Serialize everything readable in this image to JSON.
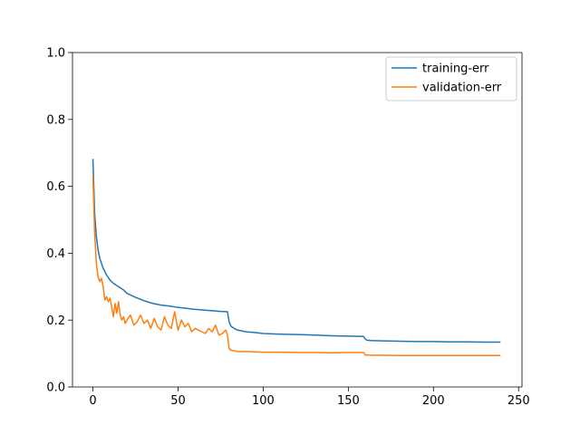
{
  "colors": {
    "training": "#1f77b4",
    "validation": "#ff7f0e",
    "axis": "#000000",
    "legend_border": "#cccccc"
  },
  "chart_data": {
    "type": "line",
    "title": "",
    "xlabel": "",
    "ylabel": "",
    "xlim": [
      -12,
      252
    ],
    "ylim": [
      0.0,
      1.0
    ],
    "xticks": [
      0,
      50,
      100,
      150,
      200,
      250
    ],
    "xtick_labels": [
      "0",
      "50",
      "100",
      "150",
      "200",
      "250"
    ],
    "yticks": [
      0.0,
      0.2,
      0.4,
      0.6,
      0.8,
      1.0
    ],
    "ytick_labels": [
      "0.0",
      "0.2",
      "0.4",
      "0.6",
      "0.8",
      "1.0"
    ],
    "grid": false,
    "legend": {
      "location": "upper right",
      "entries": [
        "training-err",
        "validation-err"
      ]
    },
    "series": [
      {
        "name": "training-err",
        "color": "#1f77b4",
        "x": [
          0,
          1,
          2,
          3,
          4,
          5,
          6,
          8,
          10,
          12,
          15,
          18,
          20,
          25,
          30,
          35,
          40,
          45,
          50,
          55,
          60,
          65,
          70,
          75,
          79,
          80,
          81,
          83,
          85,
          90,
          95,
          100,
          110,
          120,
          130,
          140,
          150,
          159,
          160,
          161,
          163,
          170,
          180,
          190,
          200,
          210,
          220,
          230,
          239
        ],
        "values": [
          0.68,
          0.52,
          0.45,
          0.41,
          0.385,
          0.37,
          0.355,
          0.335,
          0.32,
          0.31,
          0.3,
          0.29,
          0.28,
          0.268,
          0.258,
          0.25,
          0.245,
          0.242,
          0.238,
          0.235,
          0.232,
          0.23,
          0.228,
          0.226,
          0.225,
          0.195,
          0.182,
          0.175,
          0.17,
          0.165,
          0.163,
          0.16,
          0.158,
          0.157,
          0.155,
          0.153,
          0.152,
          0.151,
          0.143,
          0.14,
          0.139,
          0.138,
          0.137,
          0.136,
          0.136,
          0.135,
          0.135,
          0.134,
          0.134
        ]
      },
      {
        "name": "validation-err",
        "color": "#ff7f0e",
        "x": [
          0,
          1,
          2,
          3,
          4,
          5,
          6,
          7,
          8,
          9,
          10,
          11,
          12,
          13,
          14,
          15,
          16,
          17,
          18,
          19,
          20,
          22,
          24,
          26,
          28,
          30,
          32,
          34,
          36,
          38,
          40,
          42,
          44,
          46,
          48,
          50,
          52,
          54,
          56,
          58,
          60,
          62,
          64,
          66,
          68,
          70,
          72,
          74,
          76,
          78,
          79,
          80,
          81,
          83,
          85,
          90,
          95,
          100,
          110,
          120,
          130,
          140,
          150,
          159,
          160,
          161,
          163,
          170,
          180,
          190,
          200,
          210,
          220,
          230,
          239
        ],
        "values": [
          0.63,
          0.46,
          0.37,
          0.33,
          0.315,
          0.325,
          0.3,
          0.26,
          0.27,
          0.255,
          0.265,
          0.24,
          0.21,
          0.25,
          0.22,
          0.255,
          0.215,
          0.2,
          0.21,
          0.19,
          0.2,
          0.215,
          0.185,
          0.195,
          0.215,
          0.19,
          0.2,
          0.175,
          0.205,
          0.18,
          0.17,
          0.21,
          0.185,
          0.175,
          0.225,
          0.17,
          0.2,
          0.18,
          0.19,
          0.165,
          0.175,
          0.17,
          0.165,
          0.16,
          0.175,
          0.165,
          0.185,
          0.155,
          0.16,
          0.17,
          0.155,
          0.115,
          0.11,
          0.108,
          0.106,
          0.106,
          0.105,
          0.104,
          0.104,
          0.103,
          0.103,
          0.102,
          0.103,
          0.103,
          0.095,
          0.096,
          0.095,
          0.095,
          0.094,
          0.094,
          0.094,
          0.094,
          0.094,
          0.094,
          0.094
        ]
      }
    ]
  }
}
